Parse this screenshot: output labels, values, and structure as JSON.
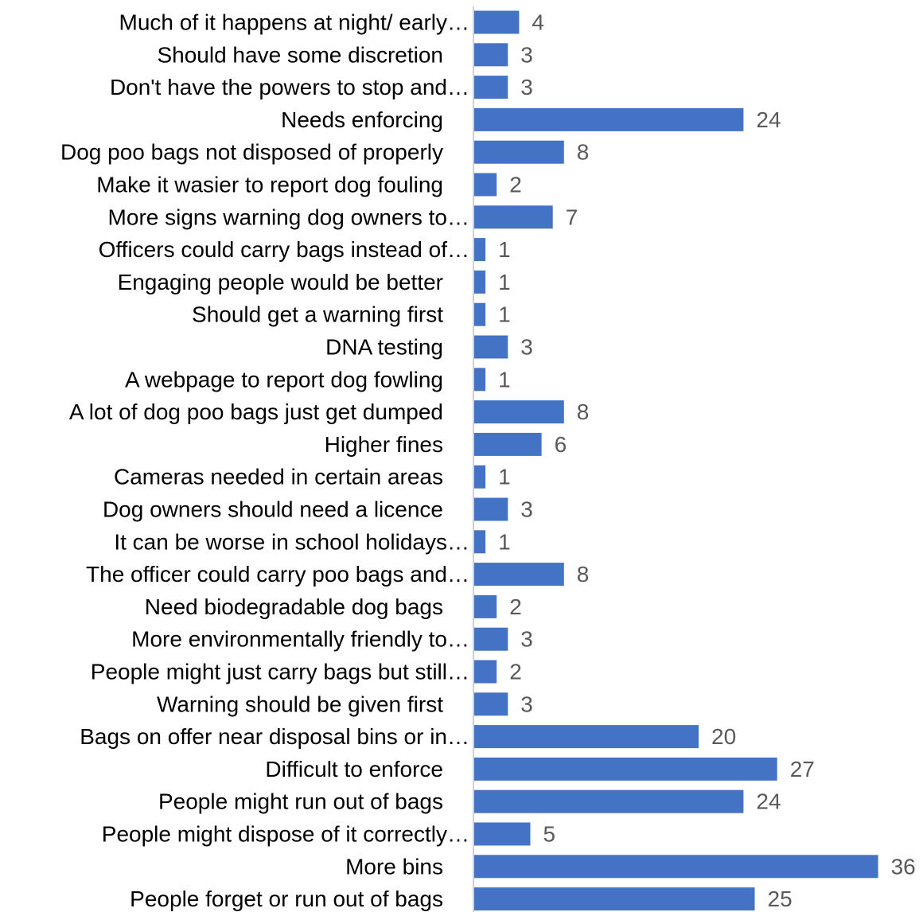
{
  "chart_data": {
    "type": "bar",
    "orientation": "horizontal",
    "title": "",
    "xlabel": "",
    "ylabel": "",
    "grid": false,
    "legend": "none",
    "bar_color": "#4472C4",
    "xlim": [
      0,
      36
    ],
    "categories": [
      "Much of it happens at night/ early…",
      "Should have some discretion",
      "Don't have the powers to stop and…",
      "Needs enforcing",
      "Dog poo bags not disposed of properly",
      "Make it wasier to report dog fouling",
      "More signs warning dog owners to…",
      "Officers could carry bags instead of…",
      "Engaging people would be better",
      "Should get a warning first",
      "DNA testing",
      "A webpage to report dog fowling",
      "A lot of dog poo bags just get dumped",
      "Higher fines",
      "Cameras needed in certain areas",
      "Dog owners should need a licence",
      "It can be worse in school holidays…",
      "The officer could carry poo bags and…",
      "Need biodegradable dog bags",
      "More environmentally friendly to…",
      "People might just carry bags but still…",
      "Warning should be given first",
      "Bags on offer near disposal bins or in…",
      "Difficult to enforce",
      "People might run out of bags",
      "People might dispose of it correctly…",
      "More bins",
      "People forget or run out of bags"
    ],
    "values": [
      4,
      3,
      3,
      24,
      8,
      2,
      7,
      1,
      1,
      1,
      3,
      1,
      8,
      6,
      1,
      3,
      1,
      8,
      2,
      3,
      2,
      3,
      20,
      27,
      24,
      5,
      36,
      25
    ]
  }
}
